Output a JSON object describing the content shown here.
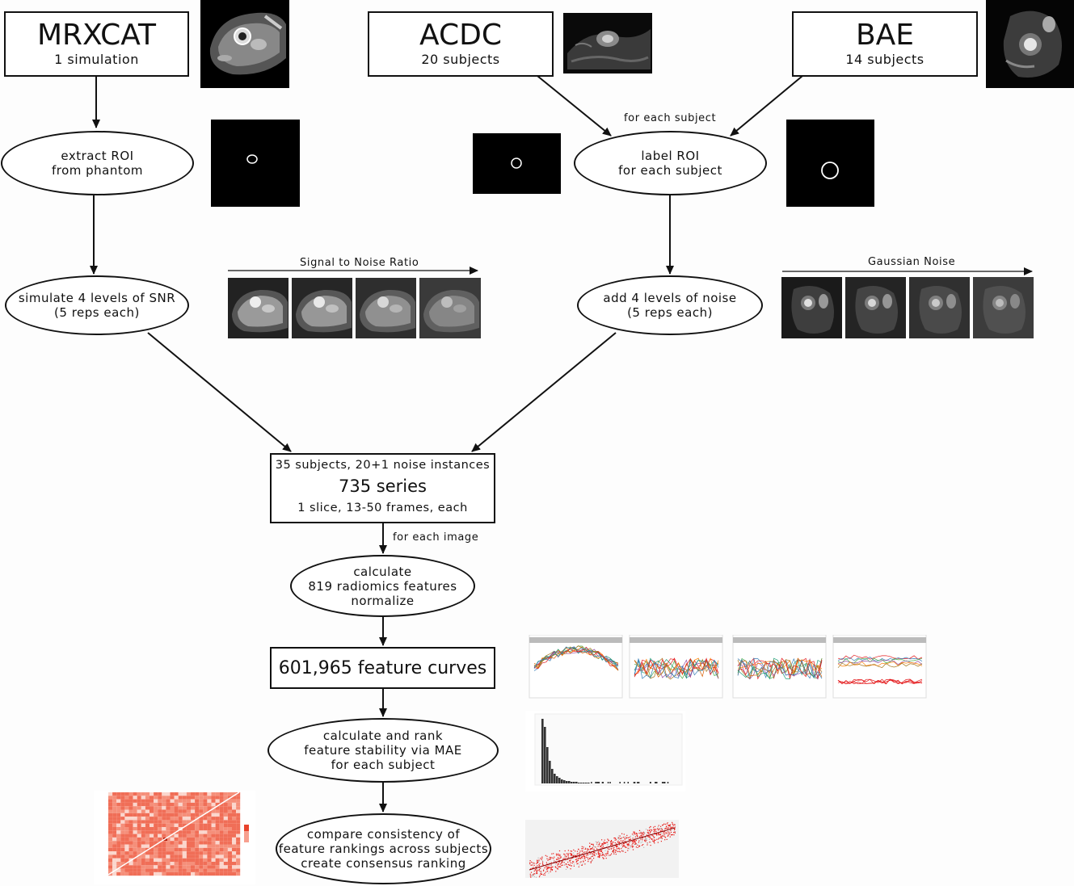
{
  "sources": {
    "mrxcat": {
      "title": "MRXCAT",
      "subtitle": "1 simulation"
    },
    "acdc": {
      "title": "ACDC",
      "subtitle": "20 subjects"
    },
    "bae": {
      "title": "BAE",
      "subtitle": "14 subjects"
    }
  },
  "steps": {
    "extract_roi": "extract ROI\nfrom phantom",
    "label_roi": "label ROI\nfor each subject",
    "simulate": "simulate 4 levels of SNR\n(5 reps each)",
    "add_noise": "add 4 levels of noise\n(5 reps each)",
    "calculate": "calculate\n819 radiomics features\nnormalize",
    "rank": "calculate and rank\nfeature stability via MAE\nfor each subject",
    "compare": "compare consistency of\nfeature rankings across subjects\ncreate consensus ranking"
  },
  "labels": {
    "for_each_subject": "for each subject",
    "snr_axis": "Signal to Noise Ratio",
    "gaussian_axis": "Gaussian Noise",
    "for_each_image": "for each image"
  },
  "series_box": {
    "line1": "35 subjects, 20+1 noise instances",
    "line2": "735 series",
    "line3": "1 slice, 13-50 frames, each"
  },
  "curves_box": "601,965 feature curves",
  "colors": {
    "line": "#111111",
    "heat": "#f0604a",
    "scatter": "#e8201c"
  }
}
